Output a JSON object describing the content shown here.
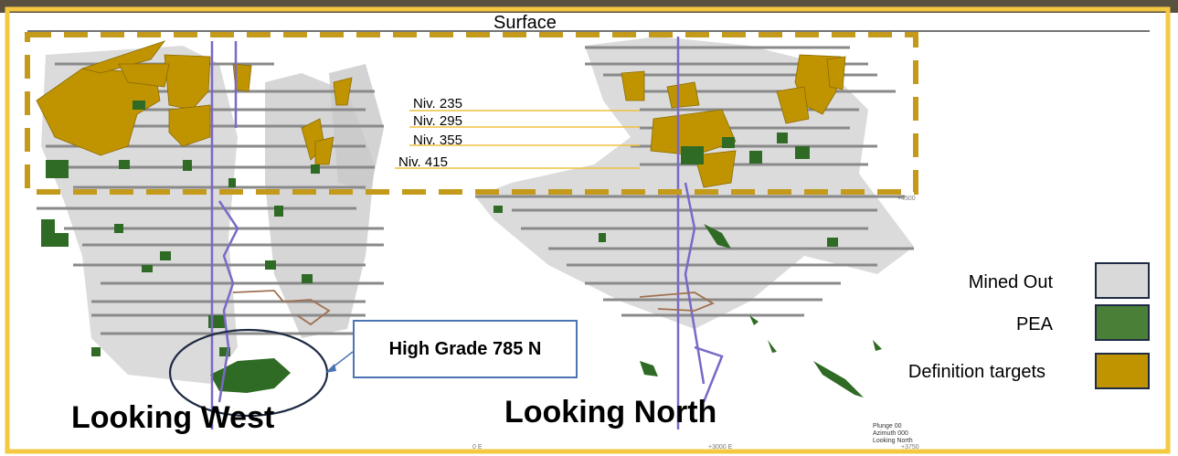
{
  "diagram": {
    "surface_label": "Surface",
    "levels": [
      "Niv. 235",
      "Niv. 295",
      "Niv. 355",
      "Niv. 415"
    ],
    "views": {
      "west": "Looking West",
      "north": "Looking North"
    },
    "callout": "High Grade 785 N",
    "legend": [
      {
        "label": "Mined  Out",
        "color": "#d9d9d9"
      },
      {
        "label": "PEA",
        "color": "#4a7f38"
      },
      {
        "label": "Definition targets",
        "color": "#c09400"
      }
    ],
    "axis_labels": {
      "right_top": "+4500",
      "bottom_mid": "0 E",
      "bottom_right1": "+3000 E",
      "bottom_right2": "+3750"
    },
    "camera_info": [
      "Plunge 00",
      "Azimuth 000",
      "Looking North"
    ],
    "colors": {
      "frame": "#f5c842",
      "dashed_box": "#c49a1a",
      "level_lines": "#f0c040",
      "callout_border": "#4a74b4",
      "shaft": "#7b68c8",
      "ramp": "#a07050"
    }
  }
}
